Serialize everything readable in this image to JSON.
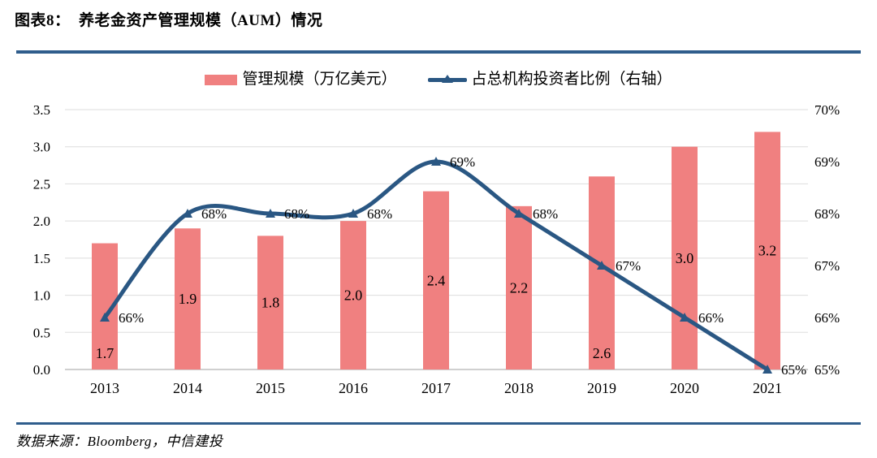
{
  "header": {
    "title": "图表8：  养老金资产管理规模（AUM）情况"
  },
  "legend": {
    "items": [
      {
        "label": "管理规模（万亿美元）",
        "series": "bar",
        "swatch": "bar-swatch"
      },
      {
        "label": "占总机构投资者比例（右轴）",
        "series": "line",
        "swatch": "line-triangle-swatch"
      }
    ]
  },
  "colors": {
    "bar": "#F08080",
    "line": "#2A5783",
    "rule": "#2F5D8C",
    "grid": "#DDDDDD",
    "axis_line": "#C0C0C0",
    "text": "#000000"
  },
  "chart_data": {
    "type": "combo-bar-line",
    "categories": [
      "2013",
      "2014",
      "2015",
      "2016",
      "2017",
      "2018",
      "2019",
      "2020",
      "2021"
    ],
    "series": [
      {
        "name": "管理规模（万亿美元）",
        "type": "bar",
        "axis": "left",
        "values": [
          1.7,
          1.9,
          1.8,
          2.0,
          2.4,
          2.2,
          2.6,
          3.0,
          3.2
        ],
        "data_labels": [
          "1.7",
          "1.9",
          "1.8",
          "2.0",
          "2.4",
          "2.2",
          "2.6",
          "3.0",
          "3.2"
        ]
      },
      {
        "name": "占总机构投资者比例（右轴）",
        "type": "line",
        "axis": "right",
        "smooth": true,
        "marker": "triangle",
        "values": [
          66,
          68,
          68,
          68,
          69,
          68,
          67,
          66,
          65
        ],
        "data_labels": [
          "66%",
          "68%",
          "68%",
          "68%",
          "69%",
          "68%",
          "67%",
          "66%",
          "65%"
        ]
      }
    ],
    "left_axis": {
      "min": 0.0,
      "max": 3.5,
      "step": 0.5,
      "ticks": [
        "0.0",
        "0.5",
        "1.0",
        "1.5",
        "2.0",
        "2.5",
        "3.0",
        "3.5"
      ]
    },
    "right_axis": {
      "min": 65,
      "max": 70,
      "step": 1,
      "ticks": [
        "65%",
        "66%",
        "67%",
        "68%",
        "69%",
        "70%"
      ]
    },
    "grid": true,
    "legend_position": "top"
  },
  "footer": {
    "source": "数据来源：Bloomberg，中信建投"
  }
}
